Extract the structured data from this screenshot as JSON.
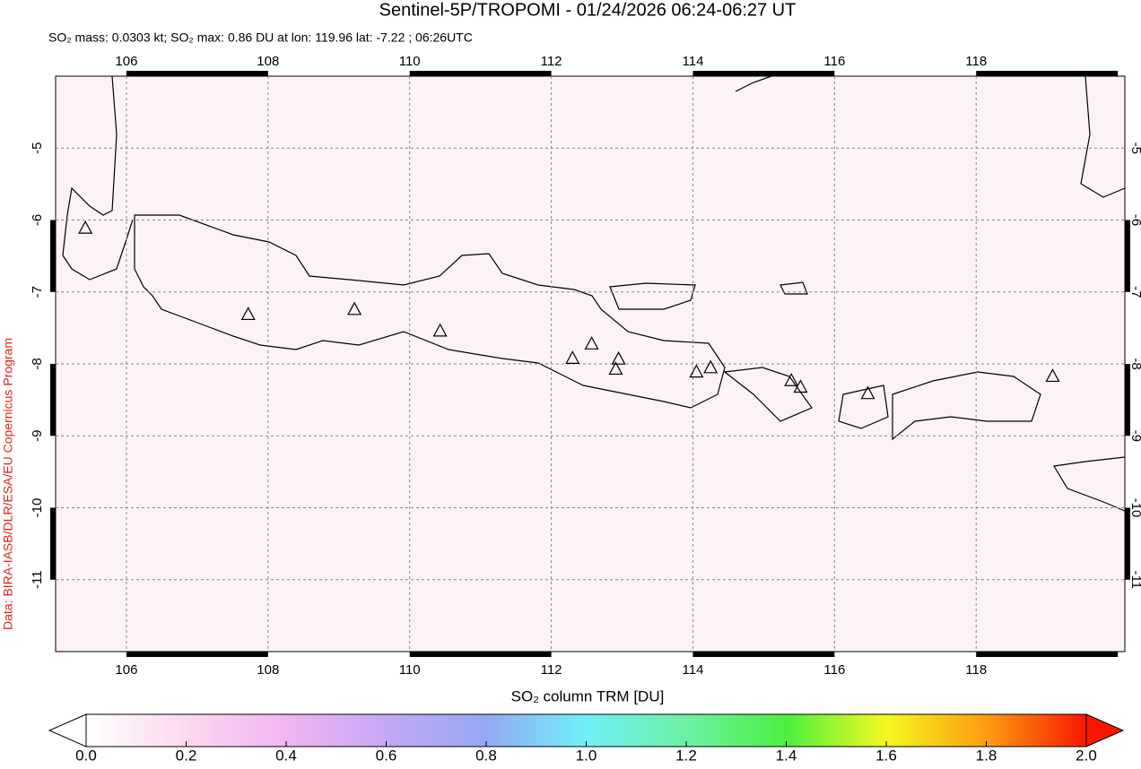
{
  "chart_data": {
    "type": "map",
    "title": "Sentinel-5P/TROPOMI - 01/24/2026 06:24-06:27 UT",
    "subtitle": "SO₂ mass: 0.0303 kt; SO₂ max: 0.86 DU at lon: 119.96 lat: -7.22 ; 06:26UTC",
    "credit": "Data: BIRA-IASB/DLR/ESA/EU Copernicus Program",
    "xlim": [
      105,
      120.1
    ],
    "ylim": [
      -12,
      -4
    ],
    "xticks": [
      106,
      108,
      110,
      112,
      114,
      116,
      118
    ],
    "yticks": [
      -5,
      -6,
      -7,
      -8,
      -9,
      -10,
      -11
    ],
    "grid": true,
    "markers": {
      "lon": [
        105.42,
        107.72,
        109.22,
        110.43,
        112.3,
        112.57,
        112.91,
        112.95,
        114.05,
        114.25,
        115.39,
        115.52,
        116.47,
        119.08
      ],
      "lat": [
        -6.12,
        -7.32,
        -7.25,
        -7.55,
        -7.93,
        -7.73,
        -8.08,
        -7.94,
        -8.12,
        -8.06,
        -8.24,
        -8.33,
        -8.42,
        -8.18
      ]
    },
    "colorbar": {
      "label": "SO₂ column TRM [DU]",
      "lim": [
        0,
        2
      ],
      "ticks": [
        {
          "value": 0,
          "label": "0.0"
        },
        0.2,
        0.4,
        0.6,
        0.8,
        {
          "value": 1,
          "label": "1.0"
        },
        1.2,
        1.4,
        1.6,
        1.8,
        {
          "value": 2,
          "label": "2.0"
        }
      ]
    }
  }
}
